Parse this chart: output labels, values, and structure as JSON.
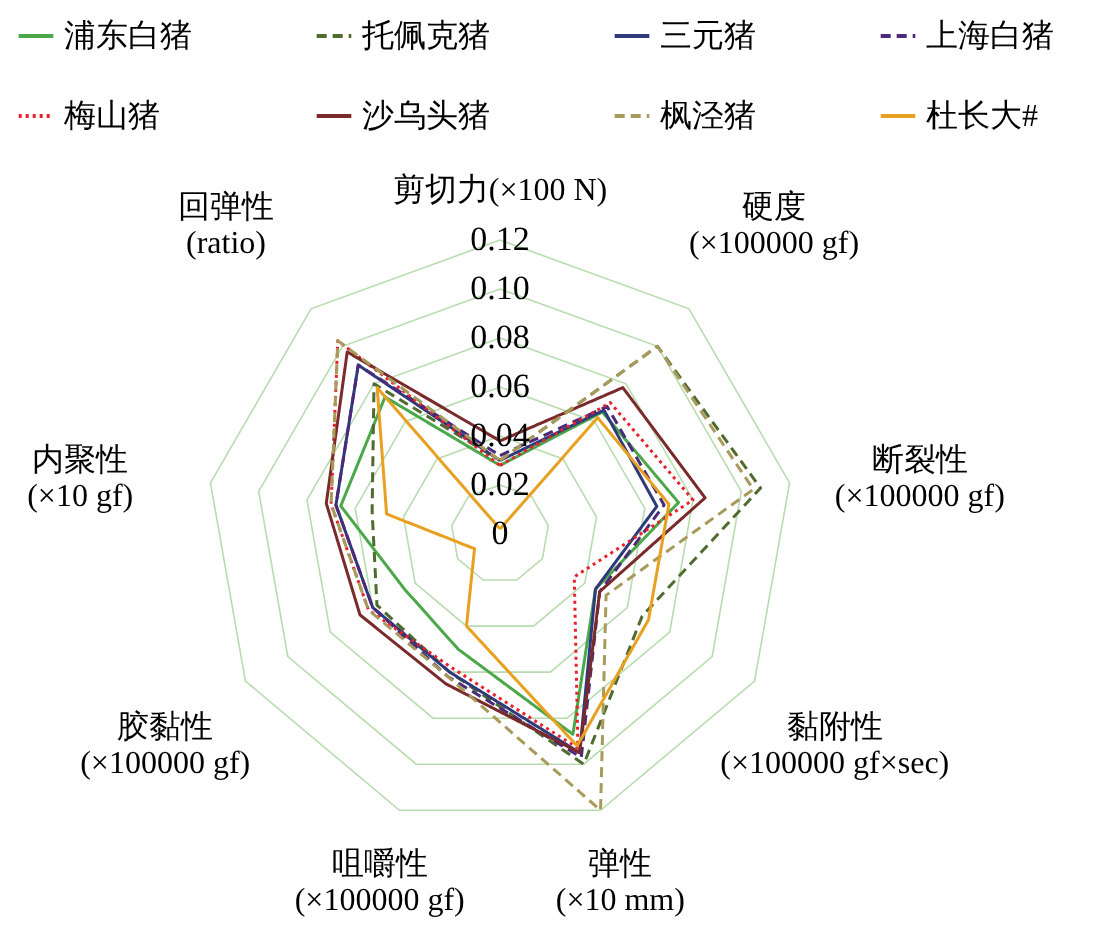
{
  "chart_data": {
    "type": "radar",
    "categories": [
      "剪切力(×100 N)",
      "硬度(×100000 gf)",
      "断裂性(×100000 gf)",
      "黏附性(×100000 gf×sec)",
      "弹性(×10 mm)",
      "咀嚼性(×100000 gf)",
      "胶黏性(×100000 gf)",
      "内聚性(×10 gf)",
      "回弹性(ratio)"
    ],
    "ylim": [
      0,
      0.12
    ],
    "yticks": [
      0,
      0.02,
      0.04,
      0.06,
      0.08,
      {
        "value": 0.1,
        "label": "0.10"
      },
      0.12
    ],
    "grid": true,
    "legend": "top",
    "series": [
      {
        "name": "浦东白猪",
        "color": "#4aa84a",
        "line_style": "solid",
        "values": [
          0.028,
          0.065,
          0.074,
          0.045,
          0.087,
          0.05,
          0.045,
          0.066,
          0.073
        ]
      },
      {
        "name": "托佩克猪",
        "color": "#4f6b2f",
        "line_style": "dashed",
        "values": [
          0.03,
          0.1,
          0.108,
          0.067,
          0.1,
          0.06,
          0.058,
          0.053,
          0.08
        ]
      },
      {
        "name": "三元猪",
        "color": "#2e3a7a",
        "line_style": "solid",
        "values": [
          0.03,
          0.066,
          0.065,
          0.045,
          0.095,
          0.06,
          0.06,
          0.068,
          0.09
        ]
      },
      {
        "name": "上海白猪",
        "color": "#4b2a7a",
        "line_style": "dashed",
        "values": [
          0.032,
          0.068,
          0.068,
          0.047,
          0.097,
          0.062,
          0.06,
          0.068,
          0.09
        ]
      },
      {
        "name": "梅山猪",
        "color": "#e8202a",
        "line_style": "dotted",
        "values": [
          0.028,
          0.07,
          0.08,
          0.035,
          0.093,
          0.058,
          0.062,
          0.07,
          0.103
        ]
      },
      {
        "name": "沙乌头猪",
        "color": "#7a2a2a",
        "line_style": "solid",
        "values": [
          0.038,
          0.078,
          0.085,
          0.047,
          0.095,
          0.065,
          0.066,
          0.072,
          0.097
        ]
      },
      {
        "name": "枫泾猪",
        "color": "#a89a5a",
        "line_style": "dashed",
        "values": [
          0.03,
          0.1,
          0.105,
          0.05,
          0.12,
          0.062,
          0.062,
          0.07,
          0.103
        ]
      },
      {
        "name": "杜长大#",
        "color": "#e8a020",
        "line_style": "solid",
        "values": [
          0.002,
          0.062,
          0.07,
          0.07,
          0.092,
          0.04,
          0.012,
          0.047,
          0.078
        ]
      }
    ]
  }
}
